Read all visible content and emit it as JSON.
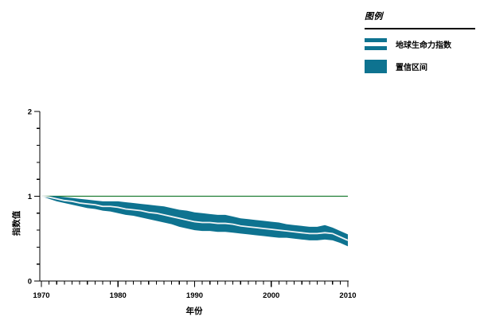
{
  "legend": {
    "title": "图例",
    "items": [
      {
        "label": "地球生命力指数",
        "swatch": "line-band"
      },
      {
        "label": "置信区间",
        "swatch": "solid"
      }
    ]
  },
  "colors": {
    "band": "#0e7390",
    "index_line": "#f0f3f4",
    "reference_line": "#1e7d33",
    "axis": "#000000",
    "text": "#000000"
  },
  "chart_data": {
    "type": "area",
    "title": "",
    "xlabel": "年份",
    "ylabel": "指数值",
    "xlim": [
      1970,
      2010
    ],
    "ylim": [
      0,
      2
    ],
    "x_major_ticks": [
      1970,
      1980,
      1990,
      2000,
      2010
    ],
    "x_minor_step": 1,
    "y_major_ticks": [
      0,
      1,
      2
    ],
    "y_minor_step": 0.2,
    "reference_line_y": 1,
    "grid": false,
    "legend_position": "top-right",
    "x": [
      1970,
      1971,
      1972,
      1973,
      1974,
      1975,
      1976,
      1977,
      1978,
      1979,
      1980,
      1981,
      1982,
      1983,
      1984,
      1985,
      1986,
      1987,
      1988,
      1989,
      1990,
      1991,
      1992,
      1993,
      1994,
      1995,
      1996,
      1997,
      1998,
      1999,
      2000,
      2001,
      2002,
      2003,
      2004,
      2005,
      2006,
      2007,
      2008,
      2009,
      2010
    ],
    "series": [
      {
        "name": "地球生命力指数",
        "values": [
          1.0,
          0.99,
          0.97,
          0.95,
          0.94,
          0.92,
          0.91,
          0.9,
          0.88,
          0.88,
          0.87,
          0.85,
          0.84,
          0.83,
          0.81,
          0.8,
          0.78,
          0.76,
          0.74,
          0.72,
          0.7,
          0.69,
          0.69,
          0.68,
          0.68,
          0.67,
          0.65,
          0.64,
          0.63,
          0.62,
          0.61,
          0.6,
          0.59,
          0.58,
          0.57,
          0.56,
          0.56,
          0.57,
          0.56,
          0.52,
          0.48
        ]
      }
    ],
    "confidence_interval": {
      "name": "置信区间",
      "upper": [
        1.0,
        1.0,
        1.0,
        0.99,
        0.98,
        0.97,
        0.96,
        0.95,
        0.94,
        0.94,
        0.94,
        0.93,
        0.92,
        0.91,
        0.9,
        0.89,
        0.88,
        0.86,
        0.84,
        0.83,
        0.81,
        0.8,
        0.79,
        0.78,
        0.78,
        0.76,
        0.74,
        0.73,
        0.72,
        0.71,
        0.7,
        0.69,
        0.67,
        0.66,
        0.65,
        0.64,
        0.64,
        0.66,
        0.63,
        0.59,
        0.55
      ],
      "lower": [
        1.0,
        0.97,
        0.94,
        0.92,
        0.9,
        0.88,
        0.86,
        0.85,
        0.83,
        0.82,
        0.8,
        0.78,
        0.77,
        0.75,
        0.73,
        0.71,
        0.69,
        0.67,
        0.64,
        0.62,
        0.6,
        0.59,
        0.59,
        0.58,
        0.58,
        0.57,
        0.56,
        0.55,
        0.54,
        0.53,
        0.52,
        0.51,
        0.51,
        0.5,
        0.49,
        0.48,
        0.48,
        0.49,
        0.48,
        0.45,
        0.41
      ]
    }
  }
}
